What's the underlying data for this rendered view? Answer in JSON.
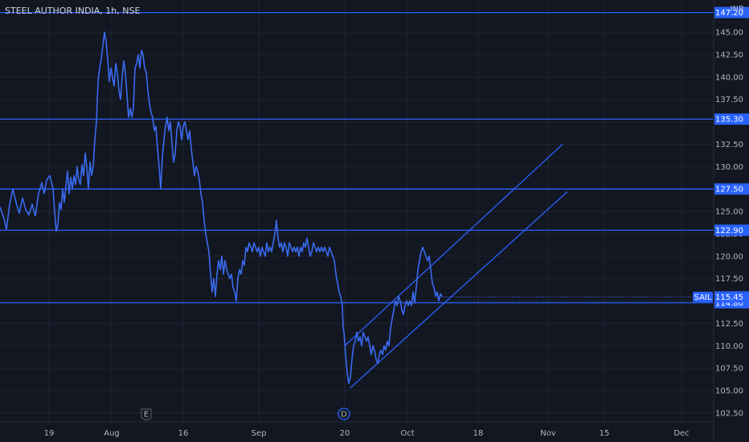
{
  "colors": {
    "background": "#131722",
    "grid": "#1f2433",
    "price_line": "#3a6bf0",
    "level_line": "#2962ff",
    "level_label_bg": "#2962ff",
    "axis_text": "#b2b5be",
    "title_text": "#d1d4dc"
  },
  "chart_data": {
    "type": "line",
    "title": "STEEL AUTHOR INDIA, 1h, NSE",
    "currency": "INR",
    "ylim": [
      101.5,
      148.6
    ],
    "grid": true,
    "y_ticks": [
      102.5,
      105.0,
      107.5,
      110.0,
      112.5,
      115.0,
      117.5,
      120.0,
      122.5,
      125.0,
      127.5,
      130.0,
      132.5,
      135.0,
      137.5,
      140.0,
      142.5,
      145.0
    ],
    "x_ticks": [
      {
        "label": "19",
        "t": 61
      },
      {
        "label": "Aug",
        "t": 139
      },
      {
        "label": "16",
        "t": 228
      },
      {
        "label": "Sep",
        "t": 322
      },
      {
        "label": "20",
        "t": 429
      },
      {
        "label": "Oct",
        "t": 507
      },
      {
        "label": "18",
        "t": 595
      },
      {
        "label": "Nov",
        "t": 682
      },
      {
        "label": "15",
        "t": 752
      },
      {
        "label": "Dec",
        "t": 848
      }
    ],
    "horizontal_levels": [
      147.2,
      135.3,
      127.5,
      122.9,
      114.8
    ],
    "level_labels": [
      "147.20",
      "135.30",
      "127.50",
      "122.90",
      "114.80"
    ],
    "last_price": {
      "symbol": "SAIL",
      "value": 115.45,
      "label": "115.45"
    },
    "channel": {
      "upper": [
        [
          429,
          110.0
        ],
        [
          700,
          132.5
        ]
      ],
      "lower": [
        [
          436,
          105.3
        ],
        [
          706,
          127.2
        ]
      ]
    },
    "events": [
      {
        "label": "E",
        "t": 182
      },
      {
        "label": "D",
        "t": 428
      }
    ],
    "series": [
      {
        "points": [
          [
            0,
            125.5
          ],
          [
            5,
            124.2
          ],
          [
            8,
            123.0
          ],
          [
            12,
            125.8
          ],
          [
            16,
            127.5
          ],
          [
            20,
            126.0
          ],
          [
            24,
            124.8
          ],
          [
            28,
            126.5
          ],
          [
            32,
            125.2
          ],
          [
            36,
            124.6
          ],
          [
            40,
            125.8
          ],
          [
            44,
            124.5
          ],
          [
            48,
            127.0
          ],
          [
            52,
            128.2
          ],
          [
            55,
            127.0
          ],
          [
            58,
            128.5
          ],
          [
            62,
            129.0
          ],
          [
            66,
            127.5
          ],
          [
            68,
            125.0
          ],
          [
            70,
            122.8
          ],
          [
            72,
            123.5
          ],
          [
            74,
            126.0
          ],
          [
            76,
            125.2
          ],
          [
            78,
            127.5
          ],
          [
            80,
            126.0
          ],
          [
            82,
            127.8
          ],
          [
            84,
            129.5
          ],
          [
            86,
            127.0
          ],
          [
            88,
            128.8
          ],
          [
            90,
            127.5
          ],
          [
            92,
            129.0
          ],
          [
            94,
            128.0
          ],
          [
            96,
            130.0
          ],
          [
            98,
            128.5
          ],
          [
            100,
            128.0
          ],
          [
            102,
            130.2
          ],
          [
            104,
            129.0
          ],
          [
            106,
            131.5
          ],
          [
            108,
            130.0
          ],
          [
            110,
            127.5
          ],
          [
            112,
            130.5
          ],
          [
            114,
            129.0
          ],
          [
            116,
            130.0
          ],
          [
            118,
            133.0
          ],
          [
            120,
            135.0
          ],
          [
            122,
            139.5
          ],
          [
            124,
            141.0
          ],
          [
            126,
            142.0
          ],
          [
            128,
            143.5
          ],
          [
            130,
            145.0
          ],
          [
            132,
            144.0
          ],
          [
            134,
            142.0
          ],
          [
            136,
            139.5
          ],
          [
            138,
            141.0
          ],
          [
            140,
            140.0
          ],
          [
            142,
            139.0
          ],
          [
            144,
            141.5
          ],
          [
            146,
            140.5
          ],
          [
            148,
            138.5
          ],
          [
            150,
            137.5
          ],
          [
            152,
            140.0
          ],
          [
            154,
            141.8
          ],
          [
            156,
            140.5
          ],
          [
            158,
            138.0
          ],
          [
            160,
            135.5
          ],
          [
            162,
            136.5
          ],
          [
            164,
            135.5
          ],
          [
            166,
            136.5
          ],
          [
            168,
            141.0
          ],
          [
            170,
            141.5
          ],
          [
            172,
            142.5
          ],
          [
            174,
            141.0
          ],
          [
            176,
            143.0
          ],
          [
            178,
            142.5
          ],
          [
            180,
            141.0
          ],
          [
            182,
            140.5
          ],
          [
            184,
            138.5
          ],
          [
            186,
            137.0
          ],
          [
            188,
            136.0
          ],
          [
            190,
            135.5
          ],
          [
            192,
            134.0
          ],
          [
            194,
            134.5
          ],
          [
            196,
            132.0
          ],
          [
            198,
            130.0
          ],
          [
            200,
            127.5
          ],
          [
            202,
            131.0
          ],
          [
            204,
            133.0
          ],
          [
            206,
            134.5
          ],
          [
            208,
            135.5
          ],
          [
            210,
            134.0
          ],
          [
            212,
            135.0
          ],
          [
            214,
            132.5
          ],
          [
            216,
            130.5
          ],
          [
            218,
            131.5
          ],
          [
            220,
            134.0
          ],
          [
            222,
            135.0
          ],
          [
            224,
            134.5
          ],
          [
            226,
            133.0
          ],
          [
            228,
            134.5
          ],
          [
            230,
            135.0
          ],
          [
            232,
            134.0
          ],
          [
            234,
            133.0
          ],
          [
            236,
            134.0
          ],
          [
            238,
            132.0
          ],
          [
            240,
            130.5
          ],
          [
            242,
            129.0
          ],
          [
            244,
            130.0
          ],
          [
            246,
            129.5
          ],
          [
            248,
            128.5
          ],
          [
            250,
            127.0
          ],
          [
            252,
            126.0
          ],
          [
            254,
            124.0
          ],
          [
            256,
            122.5
          ],
          [
            258,
            121.5
          ],
          [
            260,
            120.5
          ],
          [
            262,
            118.0
          ],
          [
            264,
            116.0
          ],
          [
            266,
            117.5
          ],
          [
            268,
            115.5
          ],
          [
            270,
            118.0
          ],
          [
            272,
            119.5
          ],
          [
            274,
            118.5
          ],
          [
            276,
            120.0
          ],
          [
            278,
            118.0
          ],
          [
            280,
            119.5
          ],
          [
            282,
            118.5
          ],
          [
            284,
            118.0
          ],
          [
            286,
            117.5
          ],
          [
            288,
            118.0
          ],
          [
            290,
            116.5
          ],
          [
            292,
            116.0
          ],
          [
            294,
            115.0
          ],
          [
            296,
            117.5
          ],
          [
            298,
            118.5
          ],
          [
            300,
            118.0
          ],
          [
            302,
            119.5
          ],
          [
            304,
            119.0
          ],
          [
            306,
            121.0
          ],
          [
            308,
            120.5
          ],
          [
            310,
            121.5
          ],
          [
            312,
            121.0
          ],
          [
            314,
            120.5
          ],
          [
            316,
            121.5
          ],
          [
            318,
            121.0
          ],
          [
            320,
            120.5
          ],
          [
            322,
            121.0
          ],
          [
            324,
            120.0
          ],
          [
            326,
            121.0
          ],
          [
            328,
            120.5
          ],
          [
            330,
            120.0
          ],
          [
            332,
            121.5
          ],
          [
            334,
            120.5
          ],
          [
            336,
            121.0
          ],
          [
            338,
            120.5
          ],
          [
            340,
            121.5
          ],
          [
            342,
            122.5
          ],
          [
            344,
            124.0
          ],
          [
            346,
            122.0
          ],
          [
            348,
            121.0
          ],
          [
            350,
            121.5
          ],
          [
            352,
            120.5
          ],
          [
            354,
            121.5
          ],
          [
            356,
            121.0
          ],
          [
            358,
            120.0
          ],
          [
            360,
            121.5
          ],
          [
            362,
            121.0
          ],
          [
            364,
            120.5
          ],
          [
            366,
            121.0
          ],
          [
            368,
            120.5
          ],
          [
            370,
            121.0
          ],
          [
            372,
            120.0
          ],
          [
            374,
            121.0
          ],
          [
            376,
            120.5
          ],
          [
            378,
            121.5
          ],
          [
            380,
            121.0
          ],
          [
            382,
            122.0
          ],
          [
            384,
            121.0
          ],
          [
            386,
            120.0
          ],
          [
            388,
            120.5
          ],
          [
            390,
            121.5
          ],
          [
            392,
            121.0
          ],
          [
            394,
            120.5
          ],
          [
            396,
            121.0
          ],
          [
            398,
            120.5
          ],
          [
            400,
            121.0
          ],
          [
            402,
            120.5
          ],
          [
            404,
            121.0
          ],
          [
            406,
            120.5
          ],
          [
            408,
            120.0
          ],
          [
            410,
            121.0
          ],
          [
            412,
            120.5
          ],
          [
            414,
            120.0
          ],
          [
            416,
            119.5
          ],
          [
            418,
            118.0
          ],
          [
            420,
            117.0
          ],
          [
            422,
            116.0
          ],
          [
            424,
            115.5
          ],
          [
            426,
            114.5
          ],
          [
            427,
            112.0
          ],
          [
            428,
            111.5
          ],
          [
            430,
            109.0
          ],
          [
            432,
            107.0
          ],
          [
            434,
            105.8
          ],
          [
            436,
            106.5
          ],
          [
            438,
            108.5
          ],
          [
            440,
            110.0
          ],
          [
            442,
            110.5
          ],
          [
            444,
            111.5
          ],
          [
            446,
            110.5
          ],
          [
            448,
            111.0
          ],
          [
            450,
            110.0
          ],
          [
            452,
            111.5
          ],
          [
            454,
            111.0
          ],
          [
            456,
            110.5
          ],
          [
            458,
            111.0
          ],
          [
            460,
            110.0
          ],
          [
            462,
            109.0
          ],
          [
            464,
            110.0
          ],
          [
            466,
            109.5
          ],
          [
            468,
            108.5
          ],
          [
            470,
            108.0
          ],
          [
            472,
            109.0
          ],
          [
            474,
            109.5
          ],
          [
            476,
            109.0
          ],
          [
            478,
            110.0
          ],
          [
            480,
            109.5
          ],
          [
            482,
            110.5
          ],
          [
            484,
            110.0
          ],
          [
            486,
            112.0
          ],
          [
            488,
            113.0
          ],
          [
            490,
            114.0
          ],
          [
            492,
            115.0
          ],
          [
            494,
            114.5
          ],
          [
            496,
            115.5
          ],
          [
            498,
            115.0
          ],
          [
            500,
            114.0
          ],
          [
            502,
            113.5
          ],
          [
            504,
            114.5
          ],
          [
            506,
            115.0
          ],
          [
            508,
            114.5
          ],
          [
            510,
            115.0
          ],
          [
            512,
            114.5
          ],
          [
            514,
            116.0
          ],
          [
            516,
            114.8
          ],
          [
            518,
            116.5
          ],
          [
            520,
            118.5
          ],
          [
            522,
            119.5
          ],
          [
            524,
            120.5
          ],
          [
            526,
            121.0
          ],
          [
            528,
            120.5
          ],
          [
            530,
            120.0
          ],
          [
            532,
            119.5
          ],
          [
            534,
            120.0
          ],
          [
            536,
            118.5
          ],
          [
            538,
            117.0
          ],
          [
            540,
            116.5
          ],
          [
            542,
            115.5
          ],
          [
            544,
            116.0
          ],
          [
            546,
            115.0
          ],
          [
            548,
            115.8
          ],
          [
            550,
            115.45
          ]
        ]
      }
    ]
  }
}
